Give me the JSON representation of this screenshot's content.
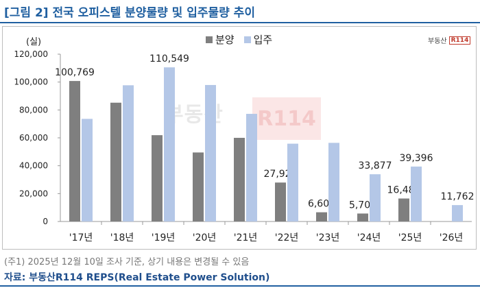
{
  "title": "[그림 2] 전국 오피스텔 분양물량 및 입주물량 추이",
  "unit_label": "(실)",
  "logo": {
    "text": "부동산",
    "box": "R114"
  },
  "watermark": {
    "text": "부동산",
    "box": "R114"
  },
  "note": "(주1) 2025년 12월 10일 조사 기준, 상기 내용은 변경될 수 있음",
  "source": "자료: 부동산R114 REPS(Real Estate Power Solution)",
  "colors": {
    "sale": "#7f7f7f",
    "move": "#b4c7e7",
    "accent": "#1f5fa0"
  },
  "chart_data": {
    "type": "bar",
    "categories": [
      "'17년",
      "'18년",
      "'19년",
      "'20년",
      "'21년",
      "'22년",
      "'23년",
      "'24년",
      "'25년",
      "'26년"
    ],
    "series": [
      {
        "name": "분양",
        "values": [
          100769,
          85200,
          61900,
          49500,
          60000,
          27926,
          6605,
          5707,
          16483,
          null
        ]
      },
      {
        "name": "입주",
        "values": [
          73600,
          97700,
          110549,
          97900,
          77200,
          55800,
          56400,
          33877,
          39396,
          11762
        ]
      }
    ],
    "labels": {
      "분양": [
        "100,769",
        "",
        "",
        "",
        "",
        "27,926",
        "6,605",
        "5,707",
        "16,483",
        ""
      ],
      "입주": [
        "",
        "",
        "110,549",
        "",
        "",
        "",
        "",
        "33,877",
        "39,396",
        "11,762"
      ]
    },
    "ylim": [
      0,
      120000
    ],
    "yticks": [
      0,
      20000,
      40000,
      60000,
      80000,
      100000,
      120000
    ],
    "ytick_labels": [
      "0",
      "20,000",
      "40,000",
      "60,000",
      "80,000",
      "100,000",
      "120,000"
    ],
    "legend": "top-center",
    "grid": false
  }
}
